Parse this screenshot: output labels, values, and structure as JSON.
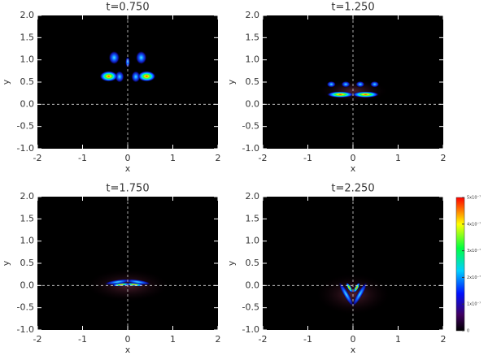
{
  "chart_data": [
    {
      "type": "heatmap",
      "title": "t=0.750",
      "xlabel": "x",
      "ylabel": "y",
      "xlim": [
        -2,
        2
      ],
      "ylim": [
        -1,
        2
      ],
      "xticks": [
        -2,
        -1,
        0,
        1,
        2
      ],
      "yticks": [
        {
          "value": -1,
          "label": "-1.0"
        },
        {
          "value": -0.5,
          "label": "-0.5"
        },
        {
          "value": 0,
          "label": "0.0"
        },
        {
          "value": 0.5,
          "label": "0.5"
        },
        {
          "value": 1,
          "label": "1.0"
        },
        {
          "value": 1.5,
          "label": "1.5"
        },
        {
          "value": 2,
          "label": "2.0"
        }
      ]
    },
    {
      "type": "heatmap",
      "title": "t=1.250",
      "xlabel": "x",
      "ylabel": "y",
      "xlim": [
        -2,
        2
      ],
      "ylim": [
        -1,
        2
      ],
      "xticks": [
        -2,
        -1,
        0,
        1,
        2
      ],
      "yticks": [
        {
          "value": -1,
          "label": "-1.0"
        },
        {
          "value": -0.5,
          "label": "-0.5"
        },
        {
          "value": 0,
          "label": "0.0"
        },
        {
          "value": 0.5,
          "label": "0.5"
        },
        {
          "value": 1,
          "label": "1.0"
        },
        {
          "value": 1.5,
          "label": "1.5"
        },
        {
          "value": 2,
          "label": "2.0"
        }
      ]
    },
    {
      "type": "heatmap",
      "title": "t=1.750",
      "xlabel": "x",
      "ylabel": "y",
      "xlim": [
        -2,
        2
      ],
      "ylim": [
        -1,
        2
      ],
      "xticks": [
        -2,
        -1,
        0,
        1,
        2
      ],
      "yticks": [
        {
          "value": -1,
          "label": "-1.0"
        },
        {
          "value": -0.5,
          "label": "-0.5"
        },
        {
          "value": 0,
          "label": "0.0"
        },
        {
          "value": 0.5,
          "label": "0.5"
        },
        {
          "value": 1,
          "label": "1.0"
        },
        {
          "value": 1.5,
          "label": "1.5"
        },
        {
          "value": 2,
          "label": "2.0"
        }
      ]
    },
    {
      "type": "heatmap",
      "title": "t=2.250",
      "xlabel": "x",
      "ylabel": "y",
      "xlim": [
        -2,
        2
      ],
      "ylim": [
        -1,
        2
      ],
      "xticks": [
        -2,
        -1,
        0,
        1,
        2
      ],
      "yticks": [
        {
          "value": -1,
          "label": "-1.0"
        },
        {
          "value": -0.5,
          "label": "-0.5"
        },
        {
          "value": 0,
          "label": "0.0"
        },
        {
          "value": 0.5,
          "label": "0.5"
        },
        {
          "value": 1,
          "label": "1.0"
        },
        {
          "value": 1.5,
          "label": "1.5"
        },
        {
          "value": 2,
          "label": "2.0"
        }
      ],
      "colorbar": {
        "lim": [
          0,
          5e-07
        ],
        "ticks": [
          0,
          {
            "value": 1e-07,
            "label": "1x10⁻⁷"
          },
          {
            "value": 2e-07,
            "label": "2x10⁻⁷"
          },
          {
            "value": 3e-07,
            "label": "3x10⁻⁷"
          },
          {
            "value": 4e-07,
            "label": "4x10⁻⁷"
          },
          {
            "value": 5e-07,
            "label": "5x10⁻⁷"
          }
        ]
      }
    }
  ]
}
